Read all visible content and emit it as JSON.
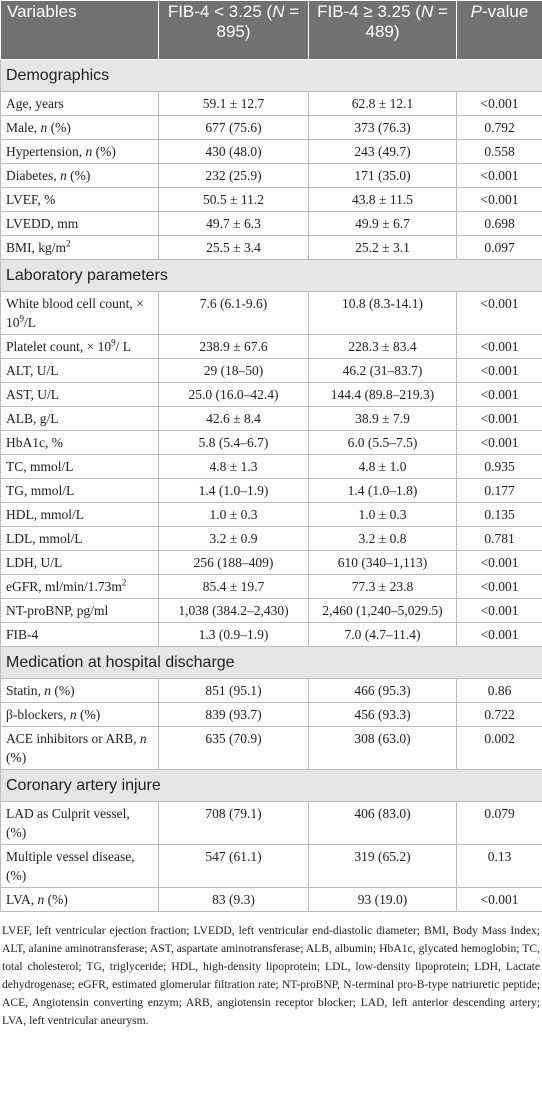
{
  "header": {
    "columns": [
      [
        "Variables"
      ],
      [
        "FIB-4 < 3.25 (",
        {
          "text": "N",
          "style": "italic"
        },
        " = 895)"
      ],
      [
        "FIB-4 ≥ 3.25 (",
        {
          "text": "N",
          "style": "italic"
        },
        " = 489)"
      ],
      [
        {
          "text": "P",
          "style": "italic"
        },
        "-value"
      ]
    ]
  },
  "sections": [
    {
      "title": "Demographics",
      "rows": [
        {
          "variable": [
            "Age, years"
          ],
          "low": "59.1 ± 12.7",
          "high": "62.8 ± 12.1",
          "p": "<0.001"
        },
        {
          "variable": [
            "Male, ",
            {
              "text": "n",
              "style": "italic"
            },
            " (%)"
          ],
          "low": "677 (75.6)",
          "high": "373 (76.3)",
          "p": "0.792"
        },
        {
          "variable": [
            "Hypertension, ",
            {
              "text": "n",
              "style": "italic"
            },
            " (%)"
          ],
          "low": "430 (48.0)",
          "high": "243 (49.7)",
          "p": "0.558"
        },
        {
          "variable": [
            "Diabetes, ",
            {
              "text": "n",
              "style": "italic"
            },
            " (%)"
          ],
          "low": "232 (25.9)",
          "high": "171 (35.0)",
          "p": "<0.001"
        },
        {
          "variable": [
            "LVEF, %"
          ],
          "low": "50.5 ± 11.2",
          "high": "43.8 ± 11.5",
          "p": "<0.001"
        },
        {
          "variable": [
            "LVEDD, mm"
          ],
          "low": "49.7 ± 6.3",
          "high": "49.9 ± 6.7",
          "p": "0.698"
        },
        {
          "variable": [
            "BMI, kg/m",
            {
              "text": "2",
              "style": "sup"
            }
          ],
          "low": "25.5 ± 3.4",
          "high": "25.2 ± 3.1",
          "p": "0.097"
        }
      ]
    },
    {
      "title": "Laboratory parameters",
      "rows": [
        {
          "variable": [
            "White blood cell count, × 10",
            {
              "text": "9",
              "style": "sup"
            },
            "/L"
          ],
          "low": "7.6 (6.1-9.6)",
          "high": "10.8 (8.3-14.1)",
          "p": "<0.001"
        },
        {
          "variable": [
            "Platelet count, × 10",
            {
              "text": "9",
              "style": "sup"
            },
            "/ L"
          ],
          "low": "238.9 ± 67.6",
          "high": "228.3 ± 83.4",
          "p": "<0.001"
        },
        {
          "variable": [
            "ALT, U/L"
          ],
          "low": "29 (18–50)",
          "high": "46.2 (31–83.7)",
          "p": "<0.001"
        },
        {
          "variable": [
            "AST, U/L"
          ],
          "low": "25.0 (16.0–42.4)",
          "high": "144.4 (89.8–219.3)",
          "p": "<0.001"
        },
        {
          "variable": [
            "ALB, g/L"
          ],
          "low": "42.6 ± 8.4",
          "high": "38.9 ± 7.9",
          "p": "<0.001"
        },
        {
          "variable": [
            "HbA1c, %"
          ],
          "low": "5.8 (5.4–6.7)",
          "high": "6.0 (5.5–7.5)",
          "p": "<0.001"
        },
        {
          "variable": [
            "TC, mmol/L"
          ],
          "low": "4.8 ± 1.3",
          "high": "4.8 ± 1.0",
          "p": "0.935"
        },
        {
          "variable": [
            "TG, mmol/L"
          ],
          "low": "1.4 (1.0–1.9)",
          "high": "1.4 (1.0–1.8)",
          "p": "0.177"
        },
        {
          "variable": [
            "HDL, mmol/L"
          ],
          "low": "1.0 ± 0.3",
          "high": "1.0 ± 0.3",
          "p": "0.135"
        },
        {
          "variable": [
            "LDL, mmol/L"
          ],
          "low": "3.2 ± 0.9",
          "high": "3.2 ± 0.8",
          "p": "0.781"
        },
        {
          "variable": [
            "LDH, U/L"
          ],
          "low": "256 (188–409)",
          "high": "610 (340–1,113)",
          "p": "<0.001"
        },
        {
          "variable": [
            "eGFR, ml/min/1.73m",
            {
              "text": "2",
              "style": "sup"
            }
          ],
          "low": "85.4 ± 19.7",
          "high": "77.3 ± 23.8",
          "p": "<0.001"
        },
        {
          "variable": [
            "NT-proBNP, pg/ml"
          ],
          "low": "1,038 (384.2–2,430)",
          "high": "2,460 (1,240–5,029.5)",
          "p": "<0.001"
        },
        {
          "variable": [
            "FIB-4"
          ],
          "low": "1.3 (0.9–1.9)",
          "high": "7.0 (4.7–11.4)",
          "p": "<0.001"
        }
      ]
    },
    {
      "title": "Medication at hospital discharge",
      "rows": [
        {
          "variable": [
            "Statin, ",
            {
              "text": "n",
              "style": "italic"
            },
            " (%)"
          ],
          "low": "851 (95.1)",
          "high": "466 (95.3)",
          "p": "0.86"
        },
        {
          "variable": [
            "β-blockers, ",
            {
              "text": "n",
              "style": "italic"
            },
            " (%)"
          ],
          "low": "839 (93.7)",
          "high": "456 (93.3)",
          "p": "0.722"
        },
        {
          "variable": [
            "ACE inhibitors or ARB, ",
            {
              "text": "n",
              "style": "italic"
            },
            " (%)"
          ],
          "low": "635 (70.9)",
          "high": "308 (63.0)",
          "p": "0.002"
        }
      ]
    },
    {
      "title": "Coronary artery injure",
      "rows": [
        {
          "variable": [
            "LAD as Culprit vessel, (%)"
          ],
          "low": "708 (79.1)",
          "high": "406 (83.0)",
          "p": "0.079"
        },
        {
          "variable": [
            "Multiple vessel disease, (%)"
          ],
          "low": "547 (61.1)",
          "high": "319 (65.2)",
          "p": "0.13"
        },
        {
          "variable": [
            "LVA, ",
            {
              "text": "n",
              "style": "italic"
            },
            " (%)"
          ],
          "low": "83 (9.3)",
          "high": "93 (19.0)",
          "p": "<0.001"
        }
      ]
    }
  ],
  "footnote": "LVEF, left ventricular ejection fraction; LVEDD, left ventricular end-diastolic diameter; BMI, Body Mass Index; ALT, alanine aminotransferase; AST, aspartate aminotransferase; ALB, albumin; HbA1c, glycated hemoglobin; TC, total cholesterol; TG, triglyceride; HDL, high-density lipoprotein; LDL, low-density lipoprotein; LDH, Lactate dehydrogenase; eGFR, estimated glomerular filtration rate; NT-proBNP, N-terminal pro-B-type natriuretic peptide; ACE, Angiotensin converting enzym; ARB, angiotensin receptor blocker; LAD, left anterior descending artery; LVA, left ventricular aneurysm."
}
